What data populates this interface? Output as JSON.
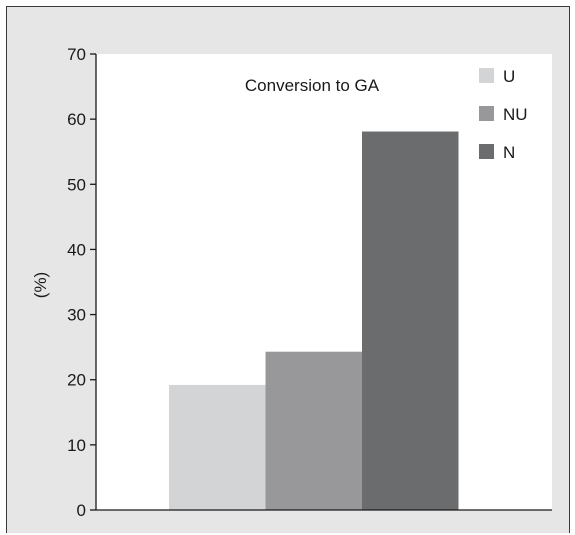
{
  "chart_data": {
    "type": "bar",
    "title": "Conversion to GA",
    "ylabel": "(%)",
    "xlabel": "",
    "ylim": [
      0,
      70
    ],
    "yticks": [
      0,
      10,
      20,
      30,
      40,
      50,
      60,
      70
    ],
    "series": [
      {
        "name": "U",
        "value": 19.2,
        "color": "#d3d4d6"
      },
      {
        "name": "NU",
        "value": 24.3,
        "color": "#98989a"
      },
      {
        "name": "N",
        "value": 58.1,
        "color": "#6b6c6e"
      }
    ],
    "legend_placement": "top-right",
    "grid": false,
    "background_color": "#e6e6e7",
    "plot_background_color": "#ffffff"
  }
}
